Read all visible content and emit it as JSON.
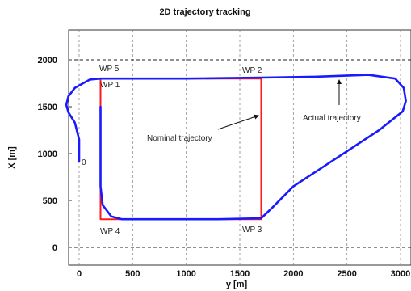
{
  "chart_data": {
    "type": "line",
    "title": "2D trajectory tracking",
    "xlabel": "y [m]",
    "ylabel": "X [m]",
    "xlim": [
      -100,
      3100
    ],
    "ylim": [
      -200,
      2300
    ],
    "xticks": [
      0,
      500,
      1000,
      1500,
      2000,
      2500,
      3000
    ],
    "yticks": [
      0,
      500,
      1000,
      1500,
      2000
    ],
    "grid": "vertical dashed",
    "series": [
      {
        "color": "#ff1a1a",
        "x": [
          200,
          1700,
          1700,
          200,
          200
        ],
        "y": [
          1800,
          1800,
          300,
          300,
          1800
        ]
      },
      {
        "color": "#1a1aff",
        "x": [
          0,
          0,
          -40,
          -100,
          -120,
          -100,
          -40,
          100,
          200,
          1000,
          1700,
          2200,
          2700,
          2950,
          3030,
          3050,
          3020,
          2800,
          2400,
          2000,
          1800,
          1700,
          1300,
          800,
          400,
          300,
          220,
          200,
          200,
          200
        ],
        "y": [
          920,
          1150,
          1330,
          1440,
          1520,
          1610,
          1700,
          1790,
          1800,
          1800,
          1810,
          1820,
          1840,
          1800,
          1700,
          1560,
          1450,
          1250,
          950,
          650,
          420,
          310,
          300,
          300,
          300,
          330,
          450,
          650,
          1100,
          1500
        ]
      }
    ],
    "annotations": {
      "wp1": "WP 1",
      "wp2": "WP 2",
      "wp3": "WP 3",
      "wp4": "WP 4",
      "wp5": "WP 5",
      "origin": "0",
      "nominal": "Nominal trajectory",
      "actual": "Actual trajectory"
    }
  }
}
